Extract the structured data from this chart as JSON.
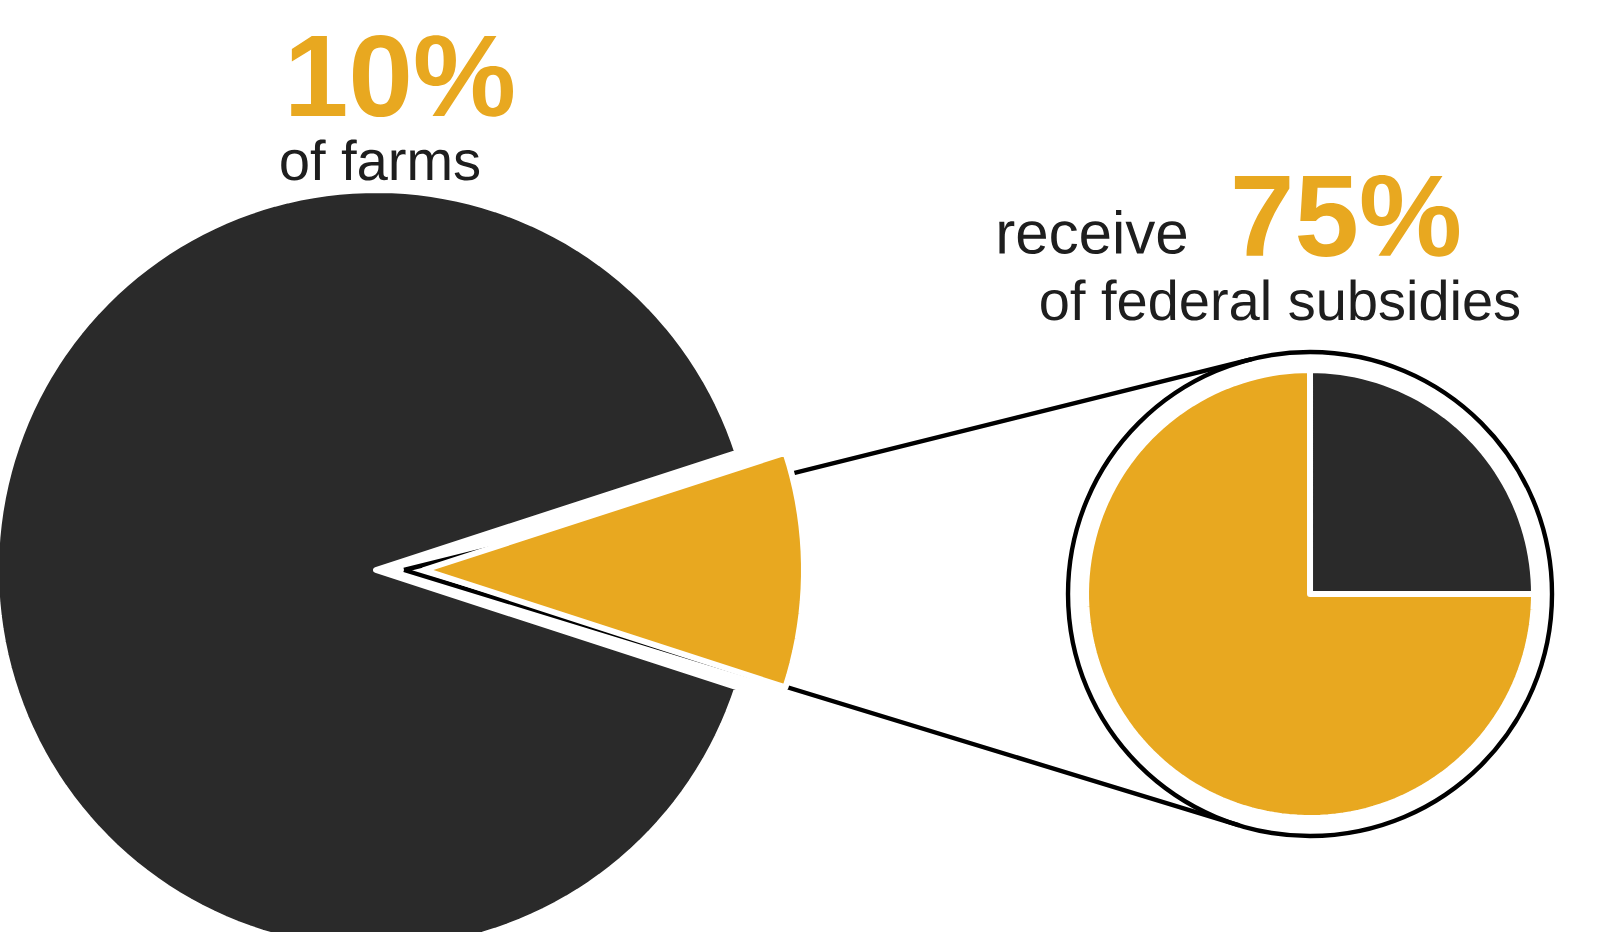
{
  "chart_data": [
    {
      "type": "pie",
      "title": "10%",
      "subtitle": "of farms",
      "categories": [
        null,
        null
      ],
      "values": [
        90,
        10
      ],
      "colors": [
        "#2a2a2a",
        "#e8a820"
      ]
    },
    {
      "type": "pie",
      "title": "75%",
      "subtitle": "of federal subsidies",
      "annotations": [
        "receive"
      ],
      "categories": [
        null,
        null
      ],
      "values": [
        25,
        75
      ],
      "colors": [
        "#2a2a2a",
        "#e8a820"
      ]
    }
  ]
}
